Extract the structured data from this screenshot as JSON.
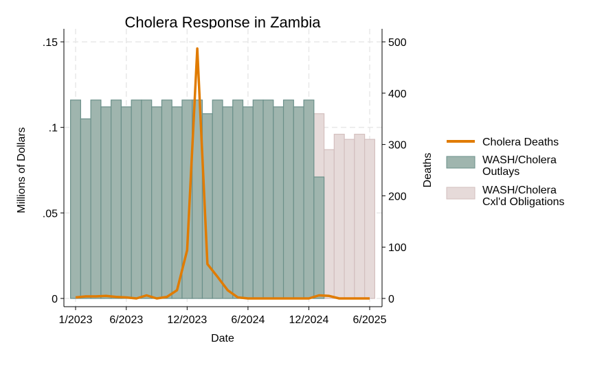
{
  "chart_data": {
    "type": "bar+line",
    "title": "Cholera Response in Zambia",
    "xlabel": "Date",
    "ylabel": "Millions of Dollars",
    "y2label": "Deaths",
    "x_ticks": [
      "1/2023",
      "6/2023",
      "12/2023",
      "6/2024",
      "12/2024",
      "6/2025"
    ],
    "y_ticks": [
      ".15",
      ".1",
      ".05",
      "0"
    ],
    "y2_ticks": [
      "500",
      "400",
      "300",
      "200",
      "100",
      "0"
    ],
    "ylim": [
      0,
      0.15
    ],
    "y2lim": [
      0,
      500
    ],
    "grid": true,
    "legend_position": "right",
    "months": [
      "1/2023",
      "2/2023",
      "3/2023",
      "4/2023",
      "5/2023",
      "6/2023",
      "7/2023",
      "8/2023",
      "9/2023",
      "10/2023",
      "11/2023",
      "12/2023",
      "1/2024",
      "2/2024",
      "3/2024",
      "4/2024",
      "5/2024",
      "6/2024",
      "7/2024",
      "8/2024",
      "9/2024",
      "10/2024",
      "11/2024",
      "12/2024",
      "1/2025",
      "2/2025",
      "3/2025",
      "4/2025",
      "5/2025",
      "6/2025"
    ],
    "series": [
      {
        "name": "WASH/Cholera Cxl'd Obligations",
        "kind": "bar",
        "axis": "left",
        "color": "#e6dad9",
        "edge": "#d3bfbe",
        "values": [
          null,
          null,
          null,
          null,
          null,
          null,
          null,
          null,
          null,
          null,
          null,
          null,
          null,
          null,
          null,
          null,
          null,
          null,
          null,
          null,
          null,
          null,
          null,
          null,
          0.108,
          0.087,
          0.096,
          0.093,
          0.096,
          0.093
        ]
      },
      {
        "name": "WASH/Cholera Outlays",
        "kind": "bar",
        "axis": "left",
        "color": "#9fb5ae",
        "edge": "#6b908a",
        "values": [
          0.116,
          0.105,
          0.116,
          0.112,
          0.116,
          0.112,
          0.116,
          0.116,
          0.112,
          0.116,
          0.112,
          0.116,
          0.116,
          0.108,
          0.116,
          0.112,
          0.116,
          0.112,
          0.116,
          0.116,
          0.112,
          0.116,
          0.112,
          0.116,
          0.071,
          null,
          null,
          null,
          null,
          null
        ]
      },
      {
        "name": "Cholera Deaths",
        "kind": "line",
        "axis": "right",
        "color": "#e07b00",
        "values": [
          2,
          4,
          4,
          5,
          3,
          2,
          0,
          6,
          0,
          3,
          16,
          94,
          487,
          67,
          42,
          16,
          2,
          0,
          0,
          0,
          0,
          0,
          0,
          0,
          6,
          5,
          0,
          0,
          0,
          0
        ]
      }
    ],
    "legend": [
      "Cholera Deaths",
      "WASH/Cholera Outlays",
      "WASH/Cholera Cxl'd Obligations"
    ],
    "legend_lines": [
      [
        "Cholera Deaths"
      ],
      [
        "WASH/Cholera",
        "Outlays"
      ],
      [
        "WASH/Cholera",
        "Cxl'd Obligations"
      ]
    ]
  }
}
